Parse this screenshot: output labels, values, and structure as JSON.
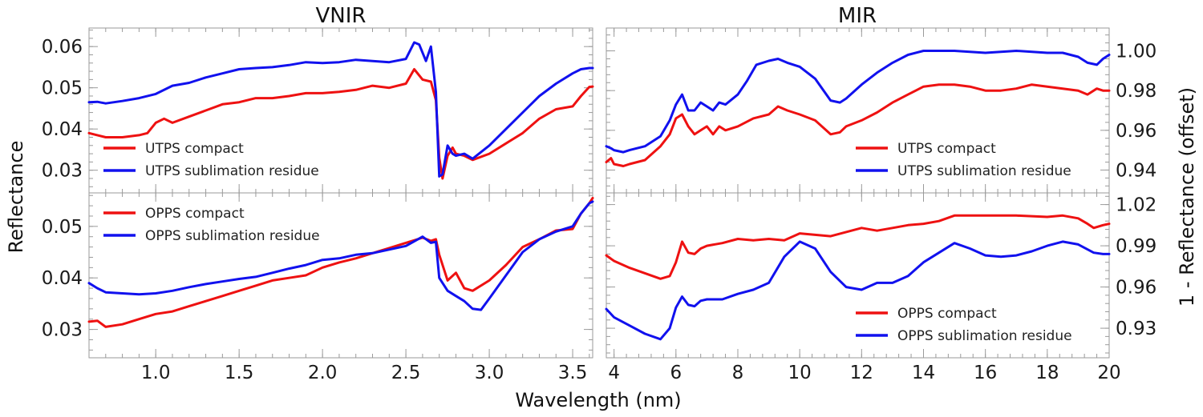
{
  "chart_data": {
    "type": "line",
    "xlabel": "Wavelength (nm)",
    "ylabel_left": "Reflectance",
    "ylabel_right": "1 - Reflectance (offset)",
    "colors": {
      "red": "#ee1111",
      "blue": "#1111ee"
    },
    "titles": {
      "vnir": "VNIR",
      "mir": "MIR"
    },
    "panels": [
      {
        "id": "vnir-top",
        "column": "VNIR",
        "xlim": [
          0.6,
          3.62
        ],
        "ylim": [
          0.0245,
          0.0645
        ],
        "xticks": [
          1.0,
          1.5,
          2.0,
          2.5,
          3.0,
          3.5
        ],
        "xticklabels": [
          "1.0",
          "1.5",
          "2.0",
          "2.5",
          "3.0",
          "3.5"
        ],
        "yticks": [
          0.03,
          0.04,
          0.05,
          0.06
        ],
        "yticklabels": [
          "0.03",
          "0.04",
          "0.05",
          "0.06"
        ],
        "legend": "lower-left",
        "series": [
          {
            "name": "UTPS compact",
            "color": "#ee1111",
            "x": [
              0.6,
              0.65,
              0.7,
              0.8,
              0.9,
              0.95,
              1.0,
              1.05,
              1.1,
              1.2,
              1.3,
              1.4,
              1.5,
              1.6,
              1.7,
              1.8,
              1.9,
              2.0,
              2.1,
              2.2,
              2.3,
              2.4,
              2.5,
              2.55,
              2.6,
              2.65,
              2.68,
              2.7,
              2.72,
              2.75,
              2.78,
              2.8,
              2.85,
              2.9,
              3.0,
              3.1,
              3.2,
              3.3,
              3.4,
              3.5,
              3.55,
              3.6,
              3.62
            ],
            "y": [
              0.039,
              0.0385,
              0.038,
              0.038,
              0.0385,
              0.039,
              0.0415,
              0.0425,
              0.0415,
              0.043,
              0.0445,
              0.046,
              0.0465,
              0.0475,
              0.0475,
              0.048,
              0.0487,
              0.0487,
              0.049,
              0.0495,
              0.0505,
              0.05,
              0.051,
              0.0545,
              0.052,
              0.0515,
              0.047,
              0.033,
              0.028,
              0.0335,
              0.0355,
              0.034,
              0.0335,
              0.0325,
              0.034,
              0.0365,
              0.039,
              0.0425,
              0.0448,
              0.0455,
              0.048,
              0.0502,
              0.0503
            ]
          },
          {
            "name": "UTPS sublimation residue",
            "color": "#1111ee",
            "x": [
              0.6,
              0.65,
              0.7,
              0.8,
              0.9,
              1.0,
              1.1,
              1.2,
              1.3,
              1.4,
              1.5,
              1.6,
              1.7,
              1.8,
              1.9,
              2.0,
              2.1,
              2.2,
              2.3,
              2.4,
              2.5,
              2.55,
              2.58,
              2.62,
              2.65,
              2.68,
              2.7,
              2.72,
              2.75,
              2.78,
              2.8,
              2.85,
              2.9,
              3.0,
              3.1,
              3.2,
              3.3,
              3.4,
              3.5,
              3.55,
              3.6,
              3.62
            ],
            "y": [
              0.0465,
              0.0466,
              0.0462,
              0.0468,
              0.0475,
              0.0485,
              0.0505,
              0.0512,
              0.0525,
              0.0535,
              0.0545,
              0.0548,
              0.055,
              0.0555,
              0.0562,
              0.056,
              0.0562,
              0.0568,
              0.0565,
              0.0562,
              0.057,
              0.061,
              0.0605,
              0.0565,
              0.06,
              0.049,
              0.0285,
              0.029,
              0.036,
              0.034,
              0.0335,
              0.034,
              0.0328,
              0.036,
              0.04,
              0.044,
              0.048,
              0.051,
              0.0535,
              0.0545,
              0.0548,
              0.0548
            ]
          }
        ]
      },
      {
        "id": "vnir-bottom",
        "column": "VNIR",
        "xlim": [
          0.6,
          3.62
        ],
        "ylim": [
          0.0245,
          0.0565
        ],
        "xticks": [
          1.0,
          1.5,
          2.0,
          2.5,
          3.0,
          3.5
        ],
        "xticklabels": [
          "1.0",
          "1.5",
          "2.0",
          "2.5",
          "3.0",
          "3.5"
        ],
        "yticks": [
          0.03,
          0.04,
          0.05
        ],
        "yticklabels": [
          "0.03",
          "0.04",
          "0.05"
        ],
        "legend": "upper-left",
        "series": [
          {
            "name": "OPPS compact",
            "color": "#ee1111",
            "x": [
              0.6,
              0.65,
              0.7,
              0.8,
              0.9,
              1.0,
              1.1,
              1.2,
              1.3,
              1.4,
              1.5,
              1.6,
              1.7,
              1.8,
              1.9,
              2.0,
              2.1,
              2.2,
              2.3,
              2.4,
              2.5,
              2.6,
              2.65,
              2.68,
              2.7,
              2.75,
              2.8,
              2.85,
              2.9,
              3.0,
              3.1,
              3.2,
              3.3,
              3.4,
              3.5,
              3.55,
              3.6,
              3.62
            ],
            "y": [
              0.0315,
              0.0317,
              0.0305,
              0.031,
              0.032,
              0.033,
              0.0335,
              0.0345,
              0.0355,
              0.0365,
              0.0375,
              0.0385,
              0.0395,
              0.04,
              0.0405,
              0.042,
              0.043,
              0.0438,
              0.0448,
              0.0458,
              0.0468,
              0.0478,
              0.0472,
              0.0475,
              0.0445,
              0.0395,
              0.041,
              0.038,
              0.0375,
              0.0395,
              0.0425,
              0.046,
              0.0475,
              0.0492,
              0.0495,
              0.0525,
              0.0545,
              0.0555
            ]
          },
          {
            "name": "OPPS sublimation residue",
            "color": "#1111ee",
            "x": [
              0.6,
              0.65,
              0.7,
              0.8,
              0.9,
              1.0,
              1.1,
              1.2,
              1.3,
              1.4,
              1.5,
              1.6,
              1.7,
              1.8,
              1.9,
              2.0,
              2.1,
              2.2,
              2.3,
              2.4,
              2.5,
              2.6,
              2.65,
              2.68,
              2.7,
              2.75,
              2.8,
              2.85,
              2.9,
              2.95,
              3.0,
              3.1,
              3.2,
              3.3,
              3.4,
              3.5,
              3.55,
              3.6,
              3.62
            ],
            "y": [
              0.039,
              0.038,
              0.0372,
              0.037,
              0.0368,
              0.037,
              0.0375,
              0.0382,
              0.0388,
              0.0393,
              0.0398,
              0.0402,
              0.041,
              0.0418,
              0.0425,
              0.0435,
              0.0438,
              0.0445,
              0.0448,
              0.0455,
              0.0462,
              0.048,
              0.0468,
              0.047,
              0.04,
              0.0375,
              0.0365,
              0.0355,
              0.034,
              0.0338,
              0.036,
              0.0405,
              0.045,
              0.0475,
              0.049,
              0.05,
              0.0525,
              0.0545,
              0.0548
            ]
          }
        ]
      },
      {
        "id": "mir-top",
        "column": "MIR",
        "xlim": [
          3.75,
          20.0
        ],
        "ylim": [
          0.9285,
          1.0115
        ],
        "xticks": [
          4,
          6,
          8,
          10,
          12,
          14,
          16,
          18,
          20
        ],
        "xticklabels": [
          "4",
          "6",
          "8",
          "10",
          "12",
          "14",
          "16",
          "18",
          "20"
        ],
        "yticks": [
          0.94,
          0.96,
          0.98,
          1.0
        ],
        "yticklabels": [
          "0.94",
          "0.96",
          "0.98",
          "1.00"
        ],
        "legend": "lower-right",
        "series": [
          {
            "name": "UTPS compact",
            "color": "#ee1111",
            "x": [
              3.75,
              3.9,
              4.0,
              4.3,
              4.5,
              5.0,
              5.5,
              5.8,
              6.0,
              6.2,
              6.4,
              6.6,
              6.8,
              7.0,
              7.2,
              7.4,
              7.6,
              8.0,
              8.5,
              9.0,
              9.3,
              9.6,
              10.0,
              10.5,
              11.0,
              11.3,
              11.5,
              12.0,
              12.5,
              13.0,
              13.5,
              14.0,
              14.5,
              15.0,
              15.5,
              16.0,
              16.5,
              17.0,
              17.5,
              18.0,
              18.5,
              19.0,
              19.3,
              19.6,
              19.8,
              20.0
            ],
            "y": [
              0.944,
              0.946,
              0.943,
              0.942,
              0.943,
              0.945,
              0.952,
              0.958,
              0.966,
              0.968,
              0.962,
              0.958,
              0.96,
              0.962,
              0.958,
              0.962,
              0.96,
              0.962,
              0.966,
              0.968,
              0.972,
              0.97,
              0.968,
              0.965,
              0.958,
              0.959,
              0.962,
              0.965,
              0.969,
              0.974,
              0.978,
              0.982,
              0.983,
              0.983,
              0.982,
              0.98,
              0.98,
              0.981,
              0.983,
              0.982,
              0.981,
              0.98,
              0.978,
              0.981,
              0.98,
              0.98
            ]
          },
          {
            "name": "UTPS sublimation residue",
            "color": "#1111ee",
            "x": [
              3.75,
              3.9,
              4.0,
              4.3,
              4.5,
              5.0,
              5.5,
              5.8,
              6.0,
              6.2,
              6.4,
              6.6,
              6.8,
              7.0,
              7.2,
              7.4,
              7.6,
              8.0,
              8.3,
              8.6,
              9.0,
              9.3,
              9.6,
              10.0,
              10.5,
              11.0,
              11.3,
              11.5,
              12.0,
              12.5,
              13.0,
              13.5,
              14.0,
              14.5,
              15.0,
              16.0,
              17.0,
              18.0,
              18.5,
              19.0,
              19.3,
              19.6,
              19.8,
              20.0
            ],
            "y": [
              0.952,
              0.951,
              0.95,
              0.949,
              0.95,
              0.952,
              0.957,
              0.965,
              0.973,
              0.978,
              0.97,
              0.97,
              0.974,
              0.972,
              0.97,
              0.974,
              0.973,
              0.978,
              0.985,
              0.993,
              0.995,
              0.996,
              0.994,
              0.992,
              0.986,
              0.975,
              0.974,
              0.976,
              0.983,
              0.989,
              0.994,
              0.998,
              1.0,
              1.0,
              1.0,
              0.999,
              1.0,
              0.999,
              0.999,
              0.997,
              0.994,
              0.993,
              0.996,
              0.998
            ]
          }
        ]
      },
      {
        "id": "mir-bottom",
        "column": "MIR",
        "xlim": [
          3.75,
          20.0
        ],
        "ylim": [
          0.9085,
          1.0285
        ],
        "xticks": [
          4,
          6,
          8,
          10,
          12,
          14,
          16,
          18,
          20
        ],
        "xticklabels": [
          "4",
          "6",
          "8",
          "10",
          "12",
          "14",
          "16",
          "18",
          "20"
        ],
        "yticks": [
          0.93,
          0.96,
          0.99,
          1.02
        ],
        "yticklabels": [
          "0.93",
          "0.96",
          "0.99",
          "1.02"
        ],
        "legend": "lower-right",
        "series": [
          {
            "name": "OPPS compact",
            "color": "#ee1111",
            "x": [
              3.75,
              4.0,
              4.5,
              5.0,
              5.5,
              5.8,
              6.0,
              6.2,
              6.4,
              6.6,
              6.8,
              7.0,
              7.5,
              8.0,
              8.5,
              9.0,
              9.5,
              10.0,
              10.5,
              11.0,
              11.5,
              12.0,
              12.5,
              13.0,
              13.5,
              14.0,
              14.5,
              15.0,
              16.0,
              17.0,
              18.0,
              18.5,
              19.0,
              19.3,
              19.5,
              19.8,
              20.0
            ],
            "y": [
              0.983,
              0.979,
              0.974,
              0.97,
              0.966,
              0.968,
              0.978,
              0.993,
              0.985,
              0.984,
              0.988,
              0.99,
              0.992,
              0.995,
              0.994,
              0.995,
              0.994,
              0.999,
              0.998,
              0.997,
              1.0,
              1.003,
              1.001,
              1.003,
              1.005,
              1.006,
              1.008,
              1.012,
              1.012,
              1.012,
              1.011,
              1.012,
              1.01,
              1.006,
              1.003,
              1.005,
              1.006
            ]
          },
          {
            "name": "OPPS sublimation residue",
            "color": "#1111ee",
            "x": [
              3.75,
              4.0,
              4.5,
              5.0,
              5.5,
              5.8,
              6.0,
              6.2,
              6.4,
              6.6,
              6.8,
              7.0,
              7.5,
              8.0,
              8.5,
              9.0,
              9.5,
              10.0,
              10.5,
              11.0,
              11.5,
              12.0,
              12.5,
              13.0,
              13.5,
              14.0,
              14.5,
              15.0,
              15.5,
              16.0,
              16.5,
              17.0,
              17.5,
              18.0,
              18.5,
              19.0,
              19.5,
              19.8,
              20.0
            ],
            "y": [
              0.944,
              0.938,
              0.932,
              0.926,
              0.922,
              0.93,
              0.945,
              0.953,
              0.947,
              0.946,
              0.95,
              0.951,
              0.951,
              0.955,
              0.958,
              0.963,
              0.982,
              0.993,
              0.988,
              0.971,
              0.96,
              0.958,
              0.963,
              0.963,
              0.968,
              0.978,
              0.985,
              0.992,
              0.988,
              0.983,
              0.982,
              0.983,
              0.986,
              0.99,
              0.993,
              0.991,
              0.985,
              0.984,
              0.984
            ]
          }
        ]
      }
    ]
  }
}
